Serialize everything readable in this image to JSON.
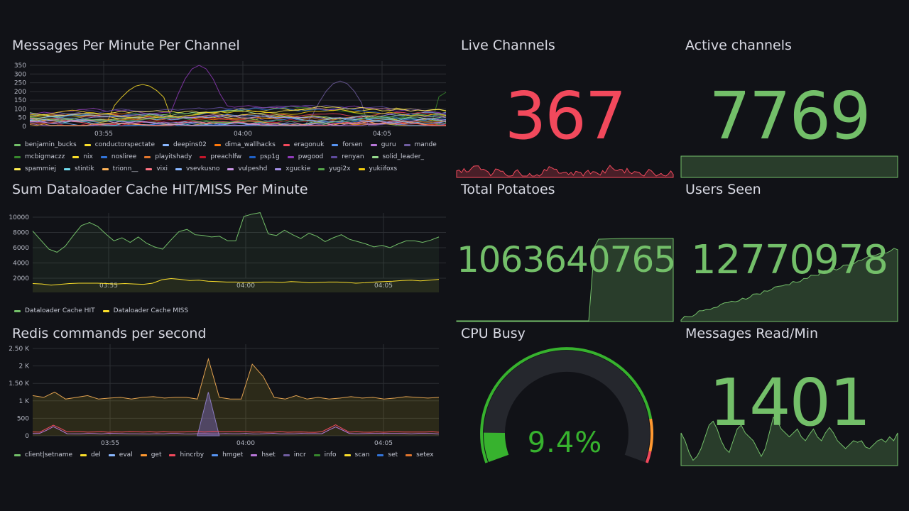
{
  "colors": {
    "green": "#73bf69",
    "red": "#f2495c",
    "yellow": "#fade2a",
    "orange": "#ff9830",
    "gauge_track": "#25272d"
  },
  "messages_panel": {
    "title": "Messages Per Minute Per Channel",
    "y_ticks": [
      "350",
      "300",
      "250",
      "200",
      "150",
      "100",
      "50",
      "0"
    ],
    "x_ticks": [
      "03:55",
      "04:00",
      "04:05"
    ],
    "legend": [
      {
        "name": "benjamin_bucks",
        "color": "#73bf69"
      },
      {
        "name": "conductorspectate",
        "color": "#fade2a"
      },
      {
        "name": "deepins02",
        "color": "#8ab8ff"
      },
      {
        "name": "dima_wallhacks",
        "color": "#ff780a"
      },
      {
        "name": "eragonuk",
        "color": "#f2495c"
      },
      {
        "name": "forsen",
        "color": "#5794f2"
      },
      {
        "name": "guru",
        "color": "#b877d9"
      },
      {
        "name": "mande",
        "color": "#705da0"
      },
      {
        "name": "mcbigmaczz",
        "color": "#37872d"
      },
      {
        "name": "nix",
        "color": "#fade2a"
      },
      {
        "name": "nosliree",
        "color": "#3274d9"
      },
      {
        "name": "playitshady",
        "color": "#e0752d"
      },
      {
        "name": "preachlfw",
        "color": "#c4162a"
      },
      {
        "name": "psp1g",
        "color": "#1f60c4"
      },
      {
        "name": "pwgood",
        "color": "#8f3bb8"
      },
      {
        "name": "renyan",
        "color": "#5e4a9e"
      },
      {
        "name": "solid_leader_",
        "color": "#96d98d"
      },
      {
        "name": "spammiej",
        "color": "#ffee52"
      },
      {
        "name": "stintik",
        "color": "#70dbed"
      },
      {
        "name": "trionn__",
        "color": "#ffb357"
      },
      {
        "name": "vixi",
        "color": "#ff7383"
      },
      {
        "name": "vsevkusno",
        "color": "#8ab8ff"
      },
      {
        "name": "vulpeshd",
        "color": "#ca95e5"
      },
      {
        "name": "xguckie",
        "color": "#a38fe5"
      },
      {
        "name": "yugi2x",
        "color": "#56a64b"
      },
      {
        "name": "yukiifoxs",
        "color": "#f2cc0c"
      }
    ]
  },
  "dataloader_panel": {
    "title": "Sum Dataloader Cache HIT/MISS Per Minute",
    "y_ticks": [
      "10000",
      "8000",
      "6000",
      "4000",
      "2000"
    ],
    "x_ticks": [
      "03:55",
      "04:00",
      "04:05"
    ],
    "legend": [
      {
        "name": "Dataloader Cache HIT",
        "color": "#73bf69"
      },
      {
        "name": "Dataloader Cache MISS",
        "color": "#fade2a"
      }
    ]
  },
  "redis_panel": {
    "title": "Redis commands per second",
    "y_ticks": [
      "2.50 K",
      "2 K",
      "1.50 K",
      "1 K",
      "500",
      "0"
    ],
    "x_ticks": [
      "03:55",
      "04:00",
      "04:05"
    ],
    "legend": [
      {
        "name": "client|setname",
        "color": "#73bf69"
      },
      {
        "name": "del",
        "color": "#fade2a"
      },
      {
        "name": "eval",
        "color": "#8ab8ff"
      },
      {
        "name": "get",
        "color": "#ff9830"
      },
      {
        "name": "hincrby",
        "color": "#f2495c"
      },
      {
        "name": "hmget",
        "color": "#5794f2"
      },
      {
        "name": "hset",
        "color": "#b877d9"
      },
      {
        "name": "incr",
        "color": "#705da0"
      },
      {
        "name": "info",
        "color": "#37872d"
      },
      {
        "name": "scan",
        "color": "#fade2a"
      },
      {
        "name": "set",
        "color": "#3274d9"
      },
      {
        "name": "setex",
        "color": "#e0752d"
      }
    ]
  },
  "live_channels": {
    "title": "Live Channels",
    "value": "367"
  },
  "active_channels": {
    "title": "Active channels",
    "value": "7769"
  },
  "total_potatoes": {
    "title": "Total Potatoes",
    "value": "1063640765"
  },
  "users_seen": {
    "title": "Users Seen",
    "value": "12770978"
  },
  "cpu_busy": {
    "title": "CPU Busy",
    "value": "9.4%",
    "percent": 9.4
  },
  "messages_read": {
    "title": "Messages Read/Min",
    "value": "1401"
  }
}
